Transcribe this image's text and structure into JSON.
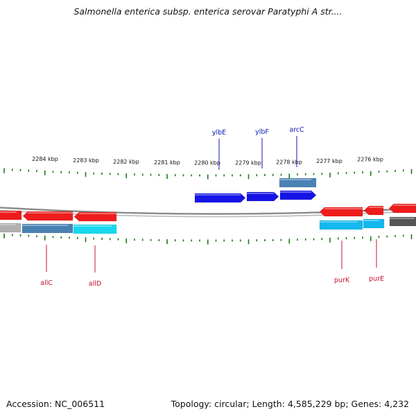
{
  "organism": "Salmonella enterica subsp. enterica serovar Paratyphi A str....",
  "accession": "NC_006511",
  "accession_label": "Accession:",
  "topology": "circular",
  "length": "4,585,229 bp",
  "genes": "4,232",
  "footer_right": "Topology: circular; Length: 4,585,229 bp; Genes: 4,232",
  "footer_left": "Accession: NC_006511",
  "colors": {
    "tick": "#1a7a12",
    "backbone": "#8a8a8a",
    "forward_label": "#0c18b8",
    "reverse_label": "#c8102e",
    "cds_forward": "#1414e6",
    "cds_reverse": "#ee1c1c",
    "gene_steel": "#4a82b4",
    "gene_cyan": "#18d8ee",
    "gene_sky": "#12b8ee",
    "gene_gray": "#b0b0b0",
    "gene_dark": "#555555"
  },
  "scale": {
    "unit": "kbp",
    "labels": [
      "2284 kbp",
      "2283 kbp",
      "2282 kbp",
      "2281 kbp",
      "2280 kbp",
      "2279 kbp",
      "2278 kbp",
      "2277 kbp",
      "2276 kbp"
    ]
  },
  "genes_forward": [
    {
      "name": "ylbE"
    },
    {
      "name": "ylbF"
    },
    {
      "name": "arcC"
    }
  ],
  "genes_reverse": [
    {
      "name": "allC"
    },
    {
      "name": "allD"
    },
    {
      "name": "purK"
    },
    {
      "name": "purE"
    }
  ]
}
